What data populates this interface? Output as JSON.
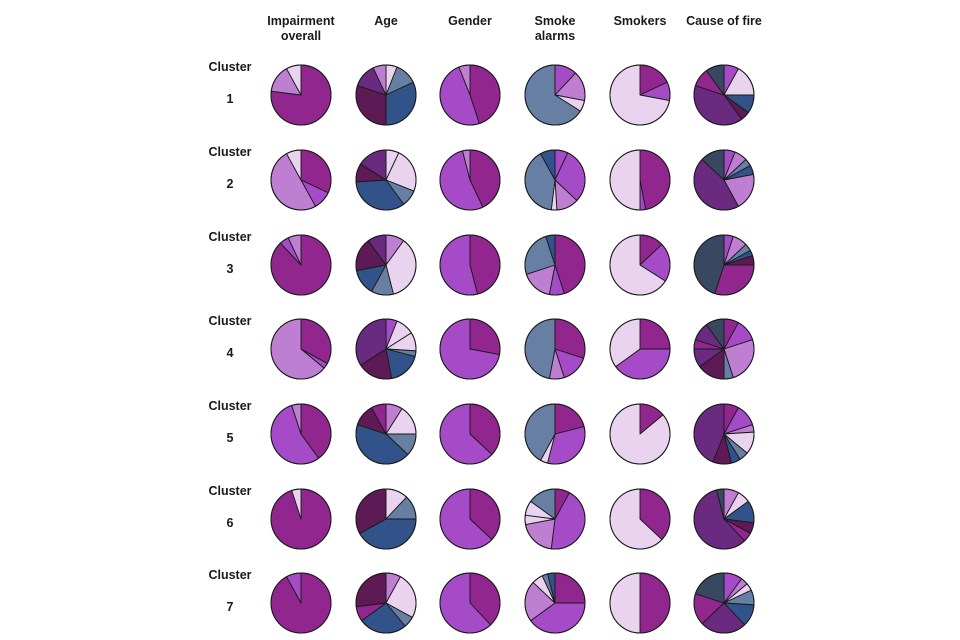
{
  "colors": {
    "c1": "#91268f",
    "c2": "#a54bc8",
    "c3": "#be7fd3",
    "c4": "#ead3ef",
    "c5": "#5d1a55",
    "c6": "#6a2a80",
    "c7": "#32528a",
    "c8": "#667fa3",
    "c9": "#384860",
    "outline": "#1a1a1a"
  },
  "chart_data": {
    "type": "pie",
    "columns": [
      "Impairment overall",
      "Age",
      "Gender",
      "Smoke alarms",
      "Smokers",
      "Cause of fire"
    ],
    "column_lines": [
      [
        "Impairment",
        "overall"
      ],
      [
        "Age"
      ],
      [
        "Gender"
      ],
      [
        "Smoke",
        "alarms"
      ],
      [
        "Smokers"
      ],
      [
        "Cause of fire"
      ]
    ],
    "rows": [
      {
        "label": "Cluster",
        "number": "1",
        "pies": [
          [
            {
              "v": 0.77,
              "c": "c1"
            },
            {
              "v": 0.15,
              "c": "c3"
            },
            {
              "v": 0.08,
              "c": "c4"
            }
          ],
          [
            {
              "v": 0.06,
              "c": "c4"
            },
            {
              "v": 0.12,
              "c": "c8"
            },
            {
              "v": 0.32,
              "c": "c7"
            },
            {
              "v": 0.3,
              "c": "c5"
            },
            {
              "v": 0.13,
              "c": "c6"
            },
            {
              "v": 0.07,
              "c": "c3"
            }
          ],
          [
            {
              "v": 0.45,
              "c": "c1"
            },
            {
              "v": 0.49,
              "c": "c2"
            },
            {
              "v": 0.06,
              "c": "c3"
            }
          ],
          [
            {
              "v": 0.12,
              "c": "c2"
            },
            {
              "v": 0.16,
              "c": "c3"
            },
            {
              "v": 0.06,
              "c": "c4"
            },
            {
              "v": 0.66,
              "c": "c8"
            }
          ],
          [
            {
              "v": 0.18,
              "c": "c1"
            },
            {
              "v": 0.1,
              "c": "c2"
            },
            {
              "v": 0.72,
              "c": "c4"
            }
          ],
          [
            {
              "v": 0.08,
              "c": "c2"
            },
            {
              "v": 0.17,
              "c": "c4"
            },
            {
              "v": 0.1,
              "c": "c7"
            },
            {
              "v": 0.05,
              "c": "c5"
            },
            {
              "v": 0.4,
              "c": "c6"
            },
            {
              "v": 0.1,
              "c": "c1"
            },
            {
              "v": 0.1,
              "c": "c9"
            }
          ]
        ]
      },
      {
        "label": "Cluster",
        "number": "2",
        "pies": [
          [
            {
              "v": 0.32,
              "c": "c1"
            },
            {
              "v": 0.1,
              "c": "c2"
            },
            {
              "v": 0.5,
              "c": "c3"
            },
            {
              "v": 0.08,
              "c": "c4"
            }
          ],
          [
            {
              "v": 0.07,
              "c": "c4"
            },
            {
              "v": 0.24,
              "c": "c4"
            },
            {
              "v": 0.09,
              "c": "c8"
            },
            {
              "v": 0.34,
              "c": "c7"
            },
            {
              "v": 0.1,
              "c": "c5"
            },
            {
              "v": 0.16,
              "c": "c6"
            }
          ],
          [
            {
              "v": 0.43,
              "c": "c1"
            },
            {
              "v": 0.53,
              "c": "c2"
            },
            {
              "v": 0.04,
              "c": "c3"
            }
          ],
          [
            {
              "v": 0.07,
              "c": "c2"
            },
            {
              "v": 0.3,
              "c": "c2"
            },
            {
              "v": 0.12,
              "c": "c3"
            },
            {
              "v": 0.03,
              "c": "c4"
            },
            {
              "v": 0.4,
              "c": "c8"
            },
            {
              "v": 0.08,
              "c": "c7"
            }
          ],
          [
            {
              "v": 0.47,
              "c": "c1"
            },
            {
              "v": 0.03,
              "c": "c2"
            },
            {
              "v": 0.5,
              "c": "c4"
            }
          ],
          [
            {
              "v": 0.06,
              "c": "c2"
            },
            {
              "v": 0.07,
              "c": "c3"
            },
            {
              "v": 0.04,
              "c": "c8"
            },
            {
              "v": 0.05,
              "c": "c7"
            },
            {
              "v": 0.2,
              "c": "c3"
            },
            {
              "v": 0.45,
              "c": "c6"
            },
            {
              "v": 0.13,
              "c": "c9"
            }
          ]
        ]
      },
      {
        "label": "Cluster",
        "number": "3",
        "pies": [
          [
            {
              "v": 0.88,
              "c": "c1"
            },
            {
              "v": 0.05,
              "c": "c2"
            },
            {
              "v": 0.07,
              "c": "c3"
            }
          ],
          [
            {
              "v": 0.1,
              "c": "c3"
            },
            {
              "v": 0.36,
              "c": "c4"
            },
            {
              "v": 0.12,
              "c": "c8"
            },
            {
              "v": 0.14,
              "c": "c7"
            },
            {
              "v": 0.18,
              "c": "c5"
            },
            {
              "v": 0.1,
              "c": "c6"
            }
          ],
          [
            {
              "v": 0.46,
              "c": "c1"
            },
            {
              "v": 0.54,
              "c": "c2"
            }
          ],
          [
            {
              "v": 0.45,
              "c": "c1"
            },
            {
              "v": 0.08,
              "c": "c2"
            },
            {
              "v": 0.17,
              "c": "c3"
            },
            {
              "v": 0.25,
              "c": "c8"
            },
            {
              "v": 0.05,
              "c": "c7"
            }
          ],
          [
            {
              "v": 0.13,
              "c": "c1"
            },
            {
              "v": 0.21,
              "c": "c2"
            },
            {
              "v": 0.66,
              "c": "c4"
            }
          ],
          [
            {
              "v": 0.05,
              "c": "c2"
            },
            {
              "v": 0.08,
              "c": "c3"
            },
            {
              "v": 0.04,
              "c": "c8"
            },
            {
              "v": 0.03,
              "c": "c7"
            },
            {
              "v": 0.05,
              "c": "c5"
            },
            {
              "v": 0.3,
              "c": "c1"
            },
            {
              "v": 0.45,
              "c": "c9"
            }
          ]
        ]
      },
      {
        "label": "Cluster",
        "number": "4",
        "pies": [
          [
            {
              "v": 0.33,
              "c": "c1"
            },
            {
              "v": 0.03,
              "c": "c2"
            },
            {
              "v": 0.64,
              "c": "c3"
            }
          ],
          [
            {
              "v": 0.06,
              "c": "c2"
            },
            {
              "v": 0.1,
              "c": "c4"
            },
            {
              "v": 0.1,
              "c": "c4"
            },
            {
              "v": 0.03,
              "c": "c8"
            },
            {
              "v": 0.18,
              "c": "c7"
            },
            {
              "v": 0.19,
              "c": "c5"
            },
            {
              "v": 0.34,
              "c": "c6"
            }
          ],
          [
            {
              "v": 0.28,
              "c": "c1"
            },
            {
              "v": 0.72,
              "c": "c2"
            }
          ],
          [
            {
              "v": 0.3,
              "c": "c1"
            },
            {
              "v": 0.15,
              "c": "c2"
            },
            {
              "v": 0.08,
              "c": "c3"
            },
            {
              "v": 0.47,
              "c": "c8"
            }
          ],
          [
            {
              "v": 0.25,
              "c": "c1"
            },
            {
              "v": 0.4,
              "c": "c2"
            },
            {
              "v": 0.35,
              "c": "c4"
            }
          ],
          [
            {
              "v": 0.08,
              "c": "c1"
            },
            {
              "v": 0.12,
              "c": "c2"
            },
            {
              "v": 0.25,
              "c": "c3"
            },
            {
              "v": 0.05,
              "c": "c8"
            },
            {
              "v": 0.15,
              "c": "c5"
            },
            {
              "v": 0.1,
              "c": "c6"
            },
            {
              "v": 0.05,
              "c": "c1"
            },
            {
              "v": 0.1,
              "c": "c6"
            },
            {
              "v": 0.1,
              "c": "c9"
            }
          ]
        ]
      },
      {
        "label": "Cluster",
        "number": "5",
        "pies": [
          [
            {
              "v": 0.4,
              "c": "c1"
            },
            {
              "v": 0.55,
              "c": "c2"
            },
            {
              "v": 0.05,
              "c": "c3"
            }
          ],
          [
            {
              "v": 0.09,
              "c": "c3"
            },
            {
              "v": 0.16,
              "c": "c4"
            },
            {
              "v": 0.12,
              "c": "c8"
            },
            {
              "v": 0.43,
              "c": "c7"
            },
            {
              "v": 0.12,
              "c": "c5"
            },
            {
              "v": 0.08,
              "c": "c1"
            }
          ],
          [
            {
              "v": 0.37,
              "c": "c1"
            },
            {
              "v": 0.63,
              "c": "c2"
            }
          ],
          [
            {
              "v": 0.21,
              "c": "c1"
            },
            {
              "v": 0.33,
              "c": "c2"
            },
            {
              "v": 0.04,
              "c": "c4"
            },
            {
              "v": 0.42,
              "c": "c8"
            }
          ],
          [
            {
              "v": 0.14,
              "c": "c1"
            },
            {
              "v": 0.86,
              "c": "c4"
            }
          ],
          [
            {
              "v": 0.08,
              "c": "c1"
            },
            {
              "v": 0.12,
              "c": "c2"
            },
            {
              "v": 0.04,
              "c": "c3"
            },
            {
              "v": 0.12,
              "c": "c4"
            },
            {
              "v": 0.05,
              "c": "c8"
            },
            {
              "v": 0.05,
              "c": "c7"
            },
            {
              "v": 0.1,
              "c": "c5"
            },
            {
              "v": 0.44,
              "c": "c6"
            }
          ]
        ]
      },
      {
        "label": "Cluster",
        "number": "6",
        "pies": [
          [
            {
              "v": 0.95,
              "c": "c1"
            },
            {
              "v": 0.05,
              "c": "c4"
            }
          ],
          [
            {
              "v": 0.12,
              "c": "c4"
            },
            {
              "v": 0.13,
              "c": "c8"
            },
            {
              "v": 0.42,
              "c": "c7"
            },
            {
              "v": 0.33,
              "c": "c5"
            }
          ],
          [
            {
              "v": 0.37,
              "c": "c1"
            },
            {
              "v": 0.63,
              "c": "c2"
            }
          ],
          [
            {
              "v": 0.08,
              "c": "c1"
            },
            {
              "v": 0.44,
              "c": "c2"
            },
            {
              "v": 0.2,
              "c": "c3"
            },
            {
              "v": 0.05,
              "c": "c4"
            },
            {
              "v": 0.08,
              "c": "c4"
            },
            {
              "v": 0.15,
              "c": "c8"
            }
          ],
          [
            {
              "v": 0.37,
              "c": "c1"
            },
            {
              "v": 0.63,
              "c": "c4"
            }
          ],
          [
            {
              "v": 0.08,
              "c": "c3"
            },
            {
              "v": 0.07,
              "c": "c4"
            },
            {
              "v": 0.12,
              "c": "c7"
            },
            {
              "v": 0.06,
              "c": "c5"
            },
            {
              "v": 0.05,
              "c": "c1"
            },
            {
              "v": 0.58,
              "c": "c6"
            },
            {
              "v": 0.04,
              "c": "c9"
            }
          ]
        ]
      },
      {
        "label": "Cluster",
        "number": "7",
        "pies": [
          [
            {
              "v": 0.92,
              "c": "c1"
            },
            {
              "v": 0.08,
              "c": "c2"
            }
          ],
          [
            {
              "v": 0.08,
              "c": "c3"
            },
            {
              "v": 0.25,
              "c": "c4"
            },
            {
              "v": 0.06,
              "c": "c8"
            },
            {
              "v": 0.26,
              "c": "c7"
            },
            {
              "v": 0.08,
              "c": "c1"
            },
            {
              "v": 0.27,
              "c": "c5"
            }
          ],
          [
            {
              "v": 0.38,
              "c": "c1"
            },
            {
              "v": 0.62,
              "c": "c2"
            }
          ],
          [
            {
              "v": 0.25,
              "c": "c1"
            },
            {
              "v": 0.4,
              "c": "c2"
            },
            {
              "v": 0.22,
              "c": "c3"
            },
            {
              "v": 0.06,
              "c": "c4"
            },
            {
              "v": 0.03,
              "c": "c8"
            },
            {
              "v": 0.04,
              "c": "c7"
            }
          ],
          [
            {
              "v": 0.5,
              "c": "c1"
            },
            {
              "v": 0.5,
              "c": "c4"
            }
          ],
          [
            {
              "v": 0.1,
              "c": "c2"
            },
            {
              "v": 0.04,
              "c": "c3"
            },
            {
              "v": 0.04,
              "c": "c4"
            },
            {
              "v": 0.08,
              "c": "c8"
            },
            {
              "v": 0.12,
              "c": "c7"
            },
            {
              "v": 0.25,
              "c": "c6"
            },
            {
              "v": 0.17,
              "c": "c1"
            },
            {
              "v": 0.2,
              "c": "c9"
            }
          ]
        ]
      }
    ]
  }
}
